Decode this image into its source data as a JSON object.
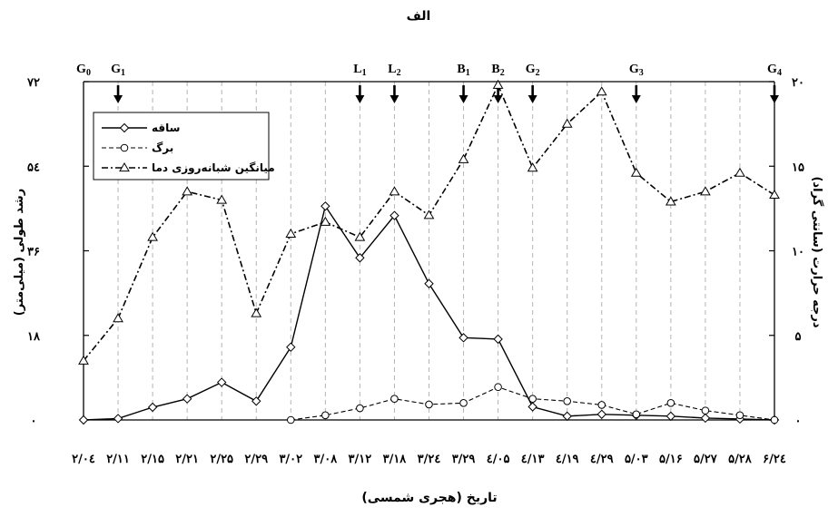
{
  "chart_data": {
    "type": "line",
    "title": "الف",
    "xlabel": "تاریخ (هجری شمسی)",
    "ylabel_left": "رشد طولی (میلی‌متر)",
    "ylabel_right": "درجه حرارت (سانتی گراد)",
    "ylim_left": [
      0,
      72
    ],
    "ylim_right": [
      0,
      20
    ],
    "yticks_left": [
      "۰",
      "۱۸",
      "۳۶",
      "۵٤",
      "۷۲"
    ],
    "yticks_right": [
      "۰",
      "۵",
      "۱۰",
      "۱۵",
      "۲۰"
    ],
    "categories": [
      "۲/۰٤",
      "۲/۱۱",
      "۲/۱۵",
      "۲/۲۱",
      "۲/۲۵",
      "۲/۲۹",
      "۳/۰۲",
      "۳/۰۸",
      "۳/۱۲",
      "۳/۱۸",
      "۳/۲٤",
      "۳/۲۹",
      "٤/۰۵",
      "٤/۱۳",
      "٤/۱۹",
      "٤/۲۹",
      "۵/۰۳",
      "۵/۱۶",
      "۵/۲۷",
      "۵/۲۸",
      "۶/۲٤"
    ],
    "series": [
      {
        "name": "ساقه",
        "axis": "left",
        "marker": "diamond",
        "style": "solid",
        "values": [
          0,
          0.3,
          2.7,
          4.5,
          8,
          4,
          15.5,
          45.5,
          34.5,
          43.5,
          29,
          17.5,
          17.2,
          2.8,
          0.8,
          1.2,
          1,
          0.8,
          0.4,
          0.2,
          0
        ]
      },
      {
        "name": "برگ",
        "axis": "left",
        "marker": "circle",
        "style": "dashed",
        "values": [
          null,
          null,
          null,
          null,
          null,
          null,
          0,
          1,
          2.5,
          4.5,
          3.3,
          3.6,
          7,
          4.5,
          4,
          3.2,
          1.2,
          3.6,
          2,
          1,
          0
        ]
      },
      {
        "name": "میانگین شبانه‌روزی دما",
        "axis": "right",
        "marker": "triangle",
        "style": "dashdot",
        "values": [
          3.5,
          6,
          10.8,
          13.5,
          13,
          6.3,
          11,
          11.7,
          10.8,
          13.5,
          12.1,
          15.4,
          19.8,
          14.9,
          17.5,
          19.4,
          14.6,
          12.9,
          13.5,
          14.6,
          13.3
        ]
      }
    ],
    "stage_markers": [
      {
        "label": "G",
        "sub": "0",
        "at": 0,
        "arrow": false
      },
      {
        "label": "G",
        "sub": "1",
        "at": 1,
        "arrow": true
      },
      {
        "label": "L",
        "sub": "1",
        "at": 8,
        "arrow": true
      },
      {
        "label": "L",
        "sub": "2",
        "at": 9,
        "arrow": true
      },
      {
        "label": "B",
        "sub": "1",
        "at": 11,
        "arrow": true
      },
      {
        "label": "B",
        "sub": "2",
        "at": 12,
        "arrow": true
      },
      {
        "label": "G",
        "sub": "2",
        "at": 13,
        "arrow": true
      },
      {
        "label": "G",
        "sub": "3",
        "at": 16,
        "arrow": true
      },
      {
        "label": "G",
        "sub": "4",
        "at": 20,
        "arrow": true
      }
    ],
    "grid": "vertical-dashed",
    "legend_position": "top-left"
  }
}
